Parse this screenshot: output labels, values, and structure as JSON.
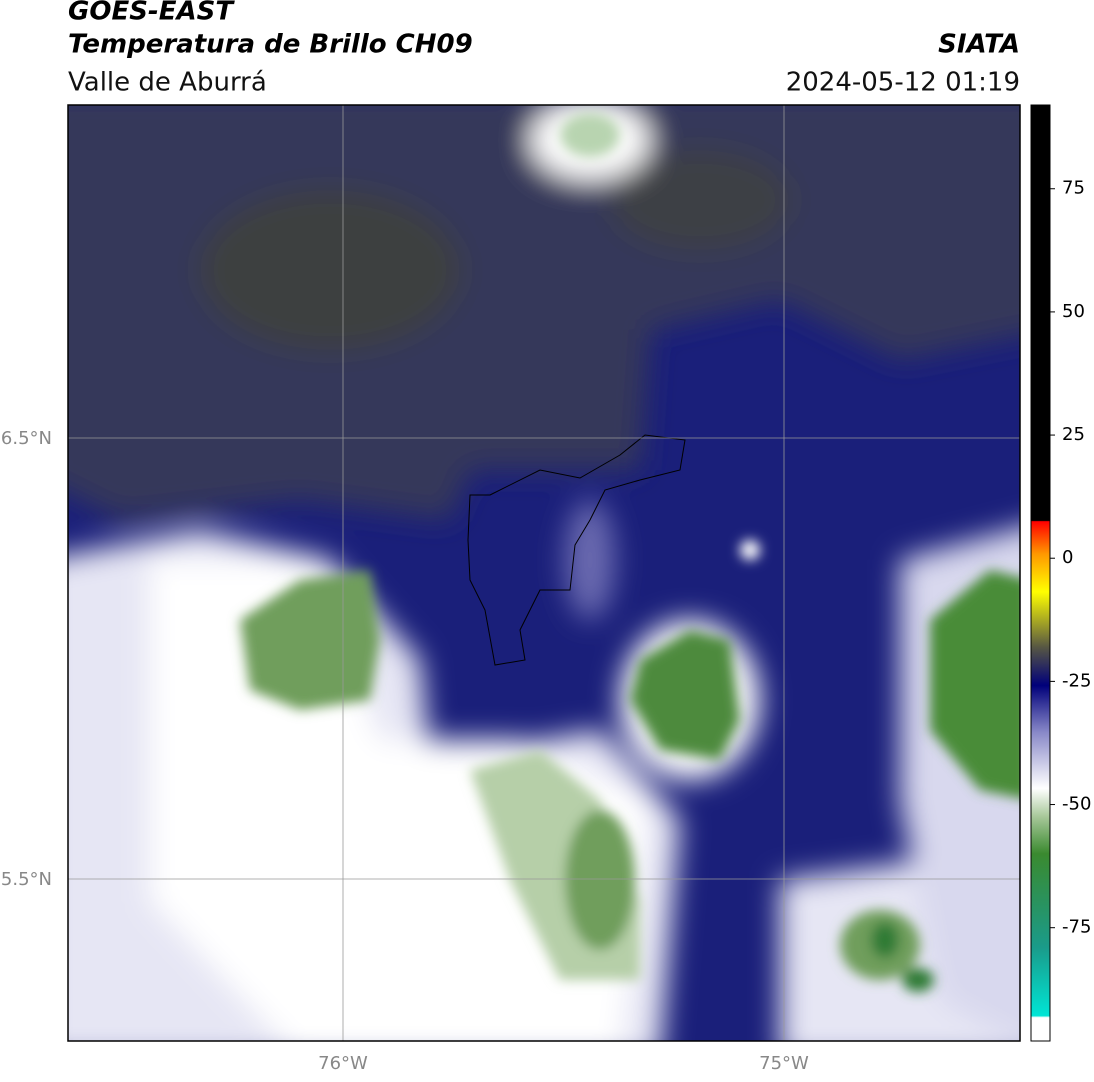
{
  "header": {
    "title": "GOES-EAST",
    "subtitle": "Temperatura de Brillo CH09",
    "region": "Valle de Aburrá",
    "source": "SIATA",
    "timestamp": "2024-05-12 01:19"
  },
  "map": {
    "lat_labels": [
      "6.5°N",
      "5.5°N"
    ],
    "lon_labels": [
      "76°W",
      "75°W"
    ]
  },
  "colorbar": {
    "range": [
      -98,
      92
    ],
    "ticks": [
      -75,
      -50,
      -25,
      0,
      25,
      50,
      75
    ]
  }
}
